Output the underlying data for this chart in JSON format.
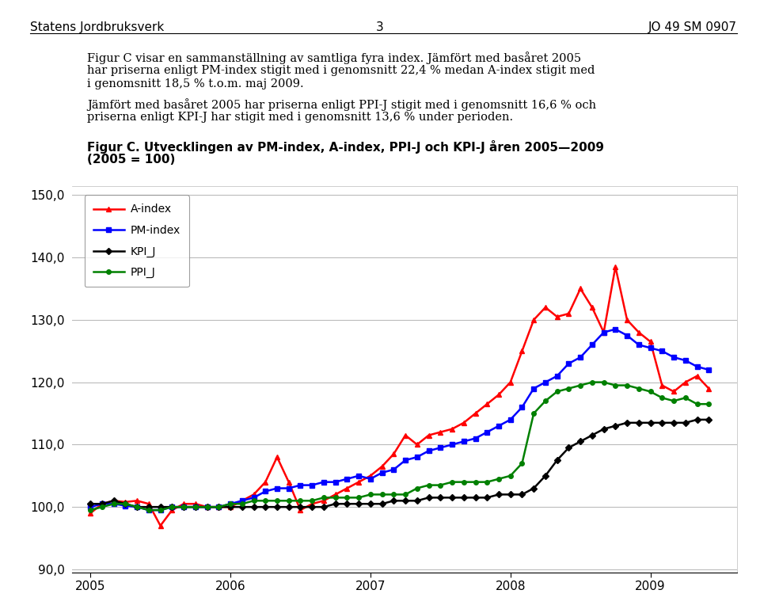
{
  "title_line1": "Figur C. Utvecklingen av PM-index, A-index, PPI-J och KPI-J åren 2005—2009",
  "title_line2": "(2005 = 100)",
  "header_left": "Statens Jordbruksverk",
  "header_center": "3",
  "header_right": "JO 49 SM 0907",
  "ylim": [
    90.0,
    150.0
  ],
  "yticks": [
    90.0,
    100.0,
    110.0,
    120.0,
    130.0,
    140.0,
    150.0
  ],
  "xlabel_years": [
    2005,
    2006,
    2007,
    2008,
    2009
  ],
  "body_text1": "Figur C visar en sammanställning av samtliga fyra index. Jämfört med basåret 2005 har priserna enligt PM-index stigit med i genomsnitt 22,4 % medan A-index stigit med i genomsnitt 18,5 % t.o.m. maj 2009.",
  "body_text2": "Jämfört med basåret 2005 har priserna enligt PPI-J stigit med i genomsnitt 16,6 % och priserna enligt KPI-J har stigit med i genomsnitt 13,6 % under perioden.",
  "A_index": {
    "label": "A-index",
    "color": "#FF0000",
    "y": [
      99.0,
      100.5,
      101.0,
      100.8,
      101.0,
      100.5,
      97.0,
      99.5,
      100.5,
      100.5,
      100.0,
      100.0,
      100.0,
      101.0,
      102.0,
      104.0,
      108.0,
      104.0,
      99.5,
      100.5,
      101.0,
      102.0,
      103.0,
      104.0,
      105.0,
      106.5,
      108.5,
      111.5,
      110.0,
      111.5,
      112.0,
      112.5,
      113.5,
      115.0,
      116.5,
      118.0,
      120.0,
      125.0,
      130.0,
      132.0,
      130.5,
      131.0,
      135.0,
      132.0,
      128.0,
      138.5,
      130.0,
      128.0,
      126.5,
      119.5,
      118.5,
      120.0,
      121.0,
      119.0
    ]
  },
  "PM_index": {
    "label": "PM-index",
    "color": "#0000FF",
    "y": [
      100.0,
      100.5,
      100.5,
      100.2,
      100.0,
      99.5,
      99.5,
      100.0,
      100.0,
      100.0,
      100.0,
      100.0,
      100.5,
      101.0,
      101.5,
      102.5,
      103.0,
      103.0,
      103.5,
      103.5,
      104.0,
      104.0,
      104.5,
      105.0,
      104.5,
      105.5,
      106.0,
      107.5,
      108.0,
      109.0,
      109.5,
      110.0,
      110.5,
      111.0,
      112.0,
      113.0,
      114.0,
      116.0,
      119.0,
      120.0,
      121.0,
      123.0,
      124.0,
      126.0,
      128.0,
      128.5,
      127.5,
      126.0,
      125.5,
      125.0,
      124.0,
      123.5,
      122.5,
      122.0
    ]
  },
  "KPI_J": {
    "label": "KPI_J",
    "color": "#000000",
    "y": [
      100.5,
      100.5,
      101.0,
      100.5,
      100.0,
      100.0,
      100.0,
      100.0,
      100.0,
      100.0,
      100.0,
      100.0,
      100.0,
      100.0,
      100.0,
      100.0,
      100.0,
      100.0,
      100.0,
      100.0,
      100.0,
      100.5,
      100.5,
      100.5,
      100.5,
      100.5,
      101.0,
      101.0,
      101.0,
      101.5,
      101.5,
      101.5,
      101.5,
      101.5,
      101.5,
      102.0,
      102.0,
      102.0,
      103.0,
      105.0,
      107.5,
      109.5,
      110.5,
      111.5,
      112.5,
      113.0,
      113.5,
      113.5,
      113.5,
      113.5,
      113.5,
      113.5,
      114.0,
      114.0
    ]
  },
  "PPI_J": {
    "label": "PPI_J",
    "color": "#008000",
    "y": [
      99.5,
      100.0,
      100.5,
      100.5,
      100.0,
      99.5,
      99.5,
      100.0,
      100.0,
      100.0,
      100.0,
      100.0,
      100.5,
      100.5,
      101.0,
      101.0,
      101.0,
      101.0,
      101.0,
      101.0,
      101.5,
      101.5,
      101.5,
      101.5,
      102.0,
      102.0,
      102.0,
      102.0,
      103.0,
      103.5,
      103.5,
      104.0,
      104.0,
      104.0,
      104.0,
      104.5,
      105.0,
      107.0,
      115.0,
      117.0,
      118.5,
      119.0,
      119.5,
      120.0,
      120.0,
      119.5,
      119.5,
      119.0,
      118.5,
      117.5,
      117.0,
      117.5,
      116.5,
      116.5
    ]
  },
  "n_points": 54
}
